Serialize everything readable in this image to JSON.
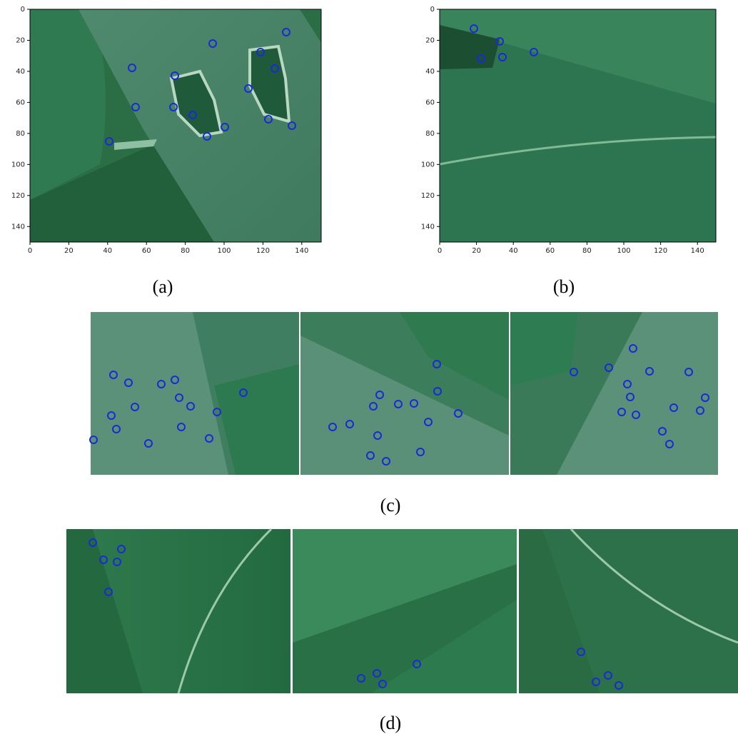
{
  "panels": [
    {
      "label": "(a)",
      "xlim": [
        0,
        150
      ],
      "ylim": [
        150,
        0
      ],
      "xticks": [
        0,
        20,
        40,
        60,
        80,
        100,
        120,
        140
      ],
      "yticks": [
        0,
        20,
        40,
        60,
        80,
        100,
        120,
        140
      ]
    },
    {
      "label": "(b)",
      "xlim": [
        0,
        150
      ],
      "ylim": [
        150,
        0
      ],
      "xticks": [
        0,
        20,
        40,
        60,
        80,
        100,
        120,
        140
      ],
      "yticks": [
        0,
        20,
        40,
        60,
        80,
        100,
        120,
        140
      ]
    }
  ],
  "strips": [
    {
      "label": "(c)"
    },
    {
      "label": "(d)"
    }
  ]
}
